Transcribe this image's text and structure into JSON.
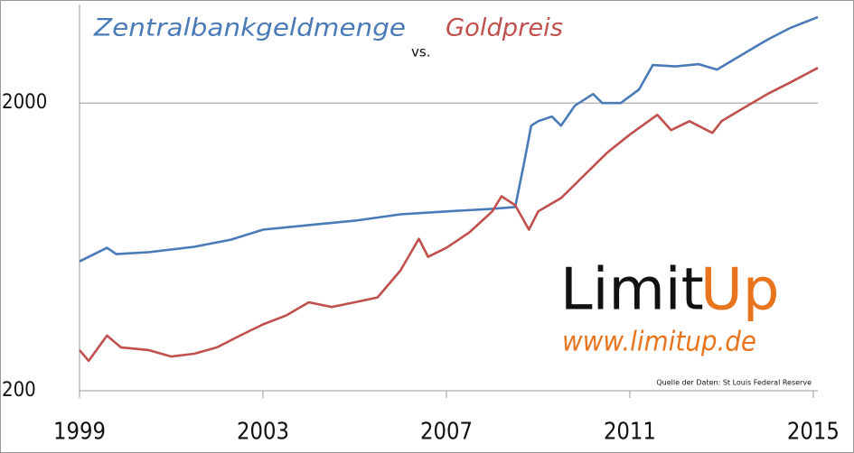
{
  "chart_data": {
    "type": "line",
    "title_connector": "vs.",
    "log_scale_y": true,
    "grid": true,
    "xlim": [
      1999,
      2015.1
    ],
    "xticks": [
      1999,
      2003,
      2007,
      2011,
      2015
    ],
    "ylim": [
      200,
      4400
    ],
    "yticks": [
      200,
      2000
    ],
    "series": [
      {
        "name": "Zentralbankgeldmenge",
        "color": "#4a7ab8",
        "x": [
          1999.0,
          1999.6,
          1999.8,
          2000.5,
          2001.5,
          2002.3,
          2003,
          2004,
          2005,
          2006,
          2007,
          2008,
          2008.5,
          2008.7,
          2008.85,
          2009,
          2009.3,
          2009.5,
          2009.8,
          2010.2,
          2010.4,
          2010.8,
          2011.2,
          2011.5,
          2012,
          2012.5,
          2012.9,
          2013.5,
          2014,
          2014.5,
          2015.1
        ],
        "values": [
          563,
          628,
          597,
          606,
          633,
          670,
          726,
          753,
          780,
          821,
          840,
          858,
          870,
          1250,
          1668,
          1730,
          1795,
          1668,
          1957,
          2150,
          2000,
          2000,
          2228,
          2710,
          2680,
          2730,
          2614,
          2980,
          3320,
          3650,
          3980
        ]
      },
      {
        "name": "Goldpreis",
        "color": "#c0504d",
        "x": [
          1999.0,
          1999.2,
          1999.6,
          1999.9,
          2000.5,
          2001,
          2001.5,
          2002,
          2002.5,
          2003,
          2003.5,
          2004,
          2004.5,
          2005,
          2005.5,
          2006,
          2006.4,
          2006.6,
          2007,
          2007.5,
          2008,
          2008.2,
          2008.5,
          2008.8,
          2009,
          2009.5,
          2010,
          2010.5,
          2011,
          2011.6,
          2011.9,
          2012.3,
          2012.8,
          2013,
          2013.5,
          2014,
          2014.5,
          2015.1
        ],
        "values": [
          277,
          254,
          311,
          283,
          277,
          263,
          269,
          283,
          311,
          340,
          365,
          406,
          391,
          406,
          422,
          524,
          675,
          584,
          628,
          710,
          840,
          948,
          883,
          726,
          840,
          935,
          1120,
          1342,
          1553,
          1820,
          1610,
          1730,
          1575,
          1730,
          1930,
          2150,
          2360,
          2650
        ]
      }
    ],
    "source": "Quelle der Daten: St Louis Federal Reserve"
  },
  "logo": {
    "word1": "Limit",
    "word2": "Up",
    "url": "www.limitup.de"
  }
}
